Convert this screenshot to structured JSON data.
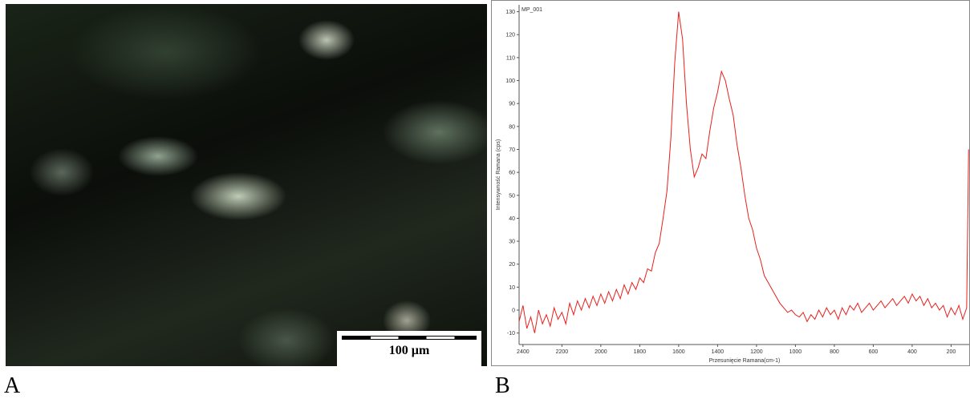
{
  "panels": [
    "A",
    "B"
  ],
  "scale_bar": "100 µm",
  "chart_data": {
    "type": "line",
    "x_label": "Przesunięcie Ramana(cm-1)",
    "y_label": "Intensywność Ramana (cps)",
    "xlim": [
      2420,
      107
    ],
    "ylim": [
      -15,
      133
    ],
    "xticks": [
      2400,
      2200,
      2000,
      1800,
      1600,
      1400,
      1200,
      1000,
      800,
      600,
      400,
      200
    ],
    "yticks": [
      -10,
      0,
      10,
      20,
      30,
      40,
      50,
      60,
      70,
      80,
      90,
      100,
      110,
      120,
      130
    ],
    "x": [
      2420,
      2400,
      2380,
      2360,
      2340,
      2320,
      2300,
      2280,
      2260,
      2240,
      2220,
      2200,
      2180,
      2160,
      2140,
      2120,
      2100,
      2080,
      2060,
      2040,
      2020,
      2000,
      1980,
      1960,
      1940,
      1920,
      1900,
      1880,
      1860,
      1840,
      1820,
      1800,
      1780,
      1760,
      1740,
      1720,
      1700,
      1680,
      1660,
      1640,
      1620,
      1600,
      1580,
      1560,
      1540,
      1520,
      1500,
      1480,
      1460,
      1440,
      1420,
      1400,
      1380,
      1360,
      1340,
      1320,
      1300,
      1280,
      1260,
      1240,
      1220,
      1200,
      1180,
      1160,
      1140,
      1120,
      1100,
      1080,
      1060,
      1040,
      1020,
      1000,
      980,
      960,
      940,
      920,
      900,
      880,
      860,
      840,
      820,
      800,
      780,
      760,
      740,
      720,
      700,
      680,
      660,
      640,
      620,
      600,
      580,
      560,
      540,
      520,
      500,
      480,
      460,
      440,
      420,
      400,
      380,
      360,
      340,
      320,
      300,
      280,
      260,
      240,
      220,
      200,
      180,
      160,
      140,
      120,
      110
    ],
    "series": [
      {
        "name": "MP_001",
        "color": "#e8201c",
        "values": [
          -5,
          2,
          -8,
          -3,
          -10,
          0,
          -6,
          -2,
          -7,
          1,
          -4,
          -1,
          -6,
          3,
          -2,
          4,
          0,
          5,
          1,
          6,
          2,
          7,
          3,
          8,
          4,
          9,
          5,
          11,
          7,
          12,
          9,
          14,
          12,
          18,
          17,
          25,
          29,
          40,
          52,
          75,
          108,
          130,
          118,
          90,
          70,
          58,
          62,
          68,
          66,
          78,
          88,
          95,
          104,
          100,
          92,
          85,
          72,
          62,
          50,
          40,
          35,
          27,
          22,
          15,
          12,
          9,
          6,
          3,
          1,
          -1,
          0,
          -2,
          -3,
          -1,
          -5,
          -2,
          -4,
          0,
          -3,
          1,
          -2,
          0,
          -4,
          1,
          -2,
          2,
          0,
          3,
          -1,
          1,
          3,
          0,
          2,
          4,
          1,
          3,
          5,
          2,
          4,
          6,
          3,
          7,
          4,
          6,
          2,
          5,
          1,
          3,
          0,
          2,
          -3,
          1,
          -2,
          2,
          -4,
          1,
          70
        ]
      }
    ]
  }
}
